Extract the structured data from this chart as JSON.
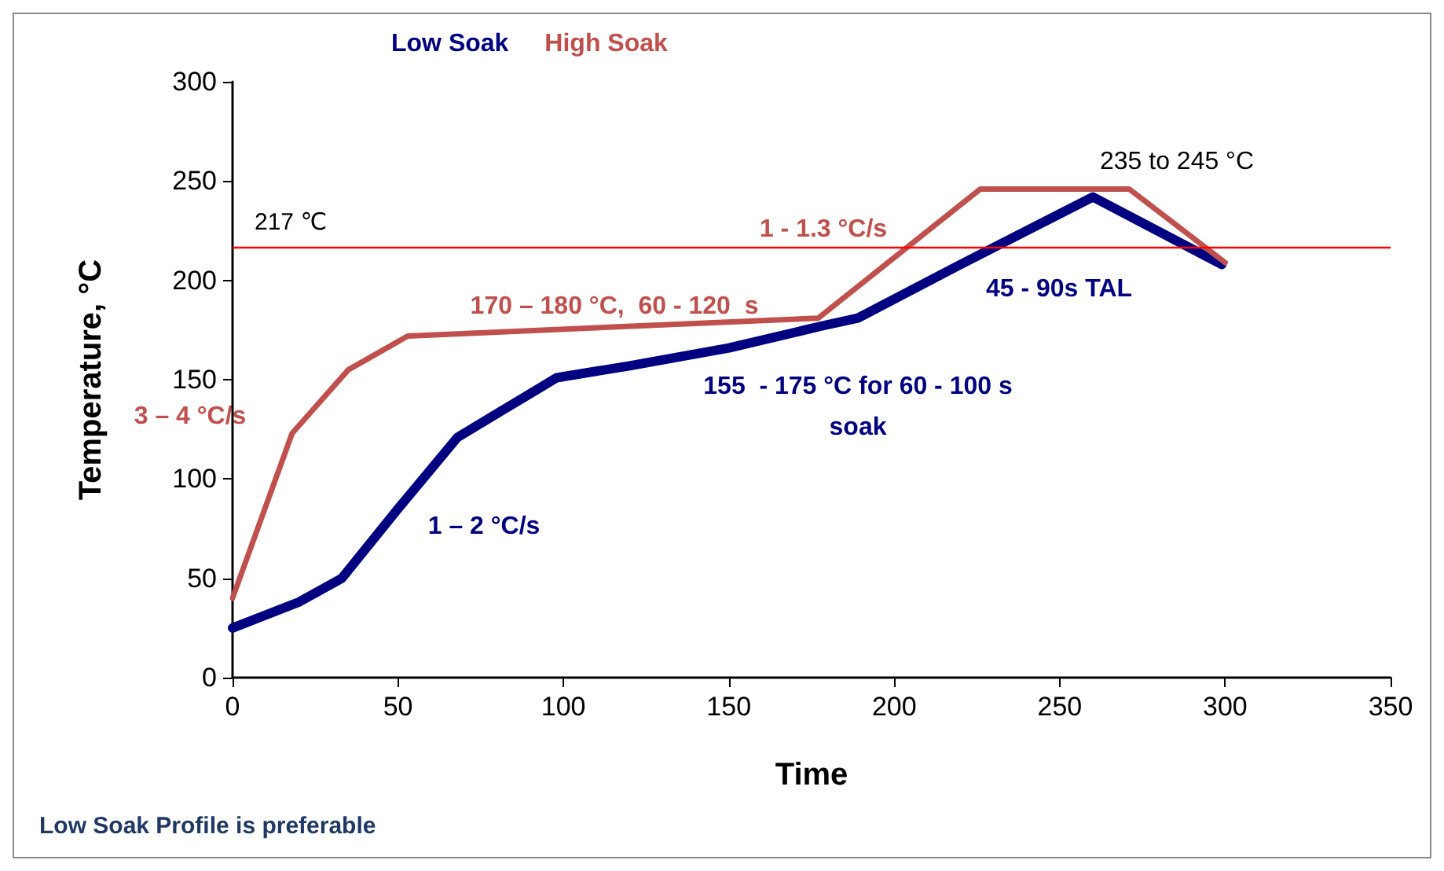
{
  "chart_data": {
    "type": "line",
    "xlabel": "Time",
    "ylabel": "Temperature, °C",
    "xlim": [
      0,
      350
    ],
    "xticks": [
      0,
      50,
      100,
      150,
      200,
      250,
      300,
      350
    ],
    "ylim": [
      0,
      300
    ],
    "yticks": [
      0,
      50,
      100,
      150,
      200,
      250,
      300
    ],
    "grid": false,
    "legend": "top",
    "marker": "none",
    "line_style": "solid",
    "series": [
      {
        "name": "Low Soak",
        "color": "#000080",
        "x": [
          0,
          20,
          33,
          50,
          68,
          80,
          98,
          120,
          150,
          178,
          189,
          220,
          260,
          299
        ],
        "values": [
          25,
          38,
          50,
          85,
          121,
          133,
          151,
          157,
          166,
          177,
          181,
          208,
          242,
          208
        ]
      },
      {
        "name": "High Soak",
        "color": "#c0504d",
        "x": [
          0,
          18,
          35,
          53,
          177,
          226,
          271,
          300
        ],
        "values": [
          40,
          123,
          155,
          172,
          181,
          246,
          246,
          209
        ]
      }
    ],
    "ref_lines": [
      {
        "axis": "y",
        "value": 217,
        "label": "217 ℃",
        "color": "#ff0000"
      }
    ],
    "annotations": [
      "3 – 4 °C/s",
      "1 – 2 °C/s",
      "170 – 180 °C,  60 - 120  s",
      "1 - 1.3 °C/s",
      "155  - 175 °C for 60 - 100 s\nsoak",
      "45 - 90s TAL",
      "235 to 245 °C",
      "Low Soak Profile is preferable"
    ]
  }
}
